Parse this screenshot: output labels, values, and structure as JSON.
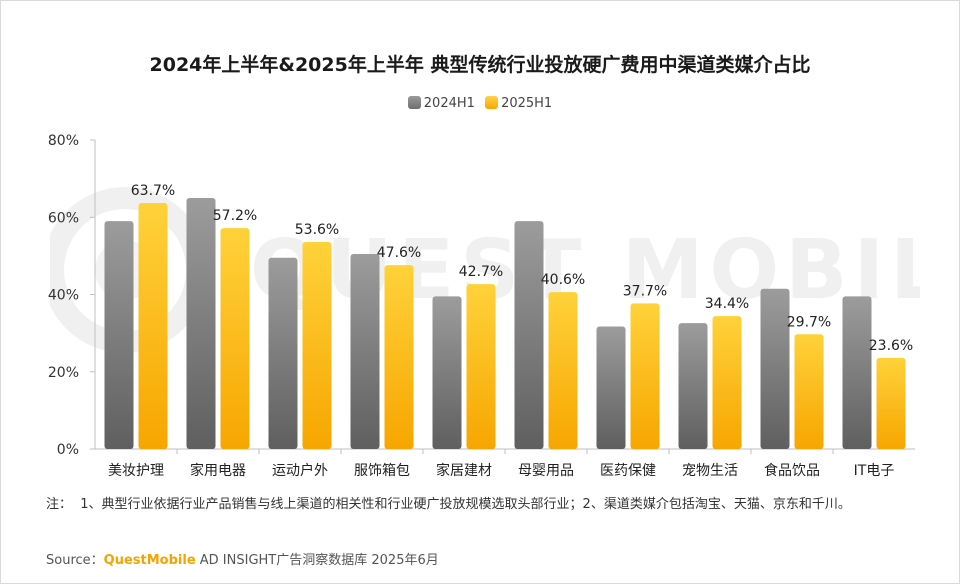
{
  "title": "2024年上半年&2025年上半年 典型传统行业投放硬广费用中渠道类媒介占比",
  "watermark": "QUEST MOBILE",
  "note_prefix": "注：",
  "note": "1、典型行业依据行业产品销售与线上渠道的相关性和行业硬广投放规模选取头部行业；2、渠道类媒介包括淘宝、天猫、京东和千川。",
  "source": {
    "label": "Source：",
    "brand": "QuestMobile",
    "rest": " AD INSIGHT广告洞察数据库 2025年6月"
  },
  "colors": {
    "series_2024": "#8a8a8a",
    "series_2025": "#ffc000"
  },
  "chart_data": {
    "type": "bar",
    "title": "2024年上半年&2025年上半年 典型传统行业投放硬广费用中渠道类媒介占比",
    "categories": [
      "美妆护理",
      "家用电器",
      "运动户外",
      "服饰箱包",
      "家居建材",
      "母婴用品",
      "医药保健",
      "宠物生活",
      "食品饮品",
      "IT电子"
    ],
    "series": [
      {
        "name": "2024H1",
        "values": [
          59.0,
          65.0,
          49.5,
          50.5,
          39.5,
          59.0,
          31.7,
          32.6,
          41.5,
          39.5
        ]
      },
      {
        "name": "2025H1",
        "values": [
          63.7,
          57.2,
          53.6,
          47.6,
          42.7,
          40.6,
          37.7,
          34.4,
          29.7,
          23.6
        ]
      }
    ],
    "data_labels": [
      "63.7%",
      "57.2%",
      "53.6%",
      "47.6%",
      "42.7%",
      "40.6%",
      "37.7%",
      "34.4%",
      "29.7%",
      "23.6%"
    ],
    "ylim": [
      0,
      80
    ],
    "yticks": [
      "0%",
      "20%",
      "40%",
      "60%",
      "80%"
    ],
    "legend": "top-center",
    "grid": false
  }
}
